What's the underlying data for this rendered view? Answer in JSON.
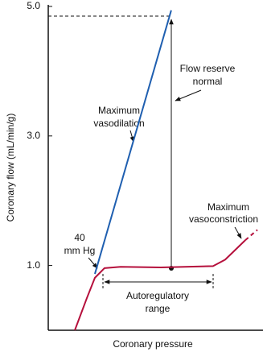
{
  "chart_data": {
    "type": "line",
    "y_label": "Coronary flow (mL/min/g)",
    "x_label": "Coronary pressure",
    "xlim": [
      0,
      100
    ],
    "ylim": [
      0,
      5
    ],
    "yticks": [
      {
        "value": 1,
        "label": "1.0"
      },
      {
        "value": 3,
        "label": "3.0"
      },
      {
        "value": 5,
        "label": "5.0"
      }
    ],
    "series": [
      {
        "color": "#1f5fb0",
        "style": "solid",
        "x": [
          22.3,
          58.8
        ],
        "values": [
          0.87,
          4.94
        ]
      },
      {
        "color": "#b5103c",
        "style": "solid",
        "x": [
          12.7,
          18.5,
          22.3,
          26.9,
          34.6,
          53.8,
          78.8,
          84.6,
          94.2
        ],
        "values": [
          0,
          0.5,
          0.81,
          0.96,
          0.98,
          0.97,
          0.99,
          1.09,
          1.39
        ]
      },
      {
        "color": "#b5103c",
        "style": "dashed",
        "x": [
          94.2,
          100
        ],
        "values": [
          1.39,
          1.55
        ]
      }
    ],
    "annotations": [
      {
        "lines": [
          "Maximum",
          "vasodilation"
        ]
      },
      {
        "lines": [
          "Flow reserve",
          "normal"
        ]
      },
      {
        "lines": [
          "Maximum",
          "vasoconstriction"
        ]
      },
      {
        "lines": [
          "40",
          "mm Hg"
        ]
      },
      {
        "lines": [
          "Autoregulatory",
          "range"
        ]
      }
    ]
  }
}
